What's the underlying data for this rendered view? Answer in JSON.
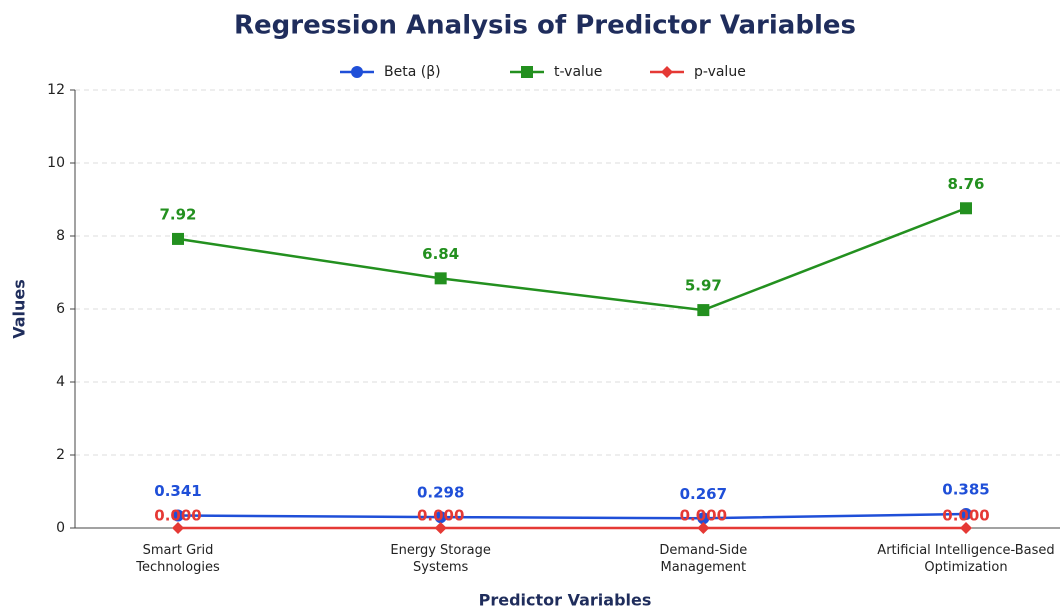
{
  "chart_data": {
    "type": "line",
    "title": "Regression Analysis of Predictor Variables",
    "x_label": "Predictor Variables",
    "y_label": "Values",
    "categories": [
      "Smart Grid\nTechnologies",
      "Energy Storage\nSystems",
      "Demand-Side\nManagement",
      "Artificial Intelligence-Based\nOptimization"
    ],
    "series": [
      {
        "name": "Beta (β)",
        "color": "#1f4fd8",
        "marker": "circle",
        "values": [
          0.341,
          0.298,
          0.267,
          0.385
        ]
      },
      {
        "name": "t-value",
        "color": "#23901f",
        "marker": "square",
        "values": [
          7.92,
          6.84,
          5.97,
          8.76
        ]
      },
      {
        "name": "p-value",
        "color": "#e53935",
        "marker": "diamond",
        "values": [
          0,
          0,
          0,
          0
        ],
        "value_labels": [
          "0.000",
          "0.000",
          "0.000",
          "0.000"
        ]
      }
    ],
    "ylim": [
      0,
      12
    ],
    "yticks": [
      0,
      2,
      4,
      6,
      8,
      10,
      12
    ],
    "grid": true,
    "legend": "top"
  }
}
